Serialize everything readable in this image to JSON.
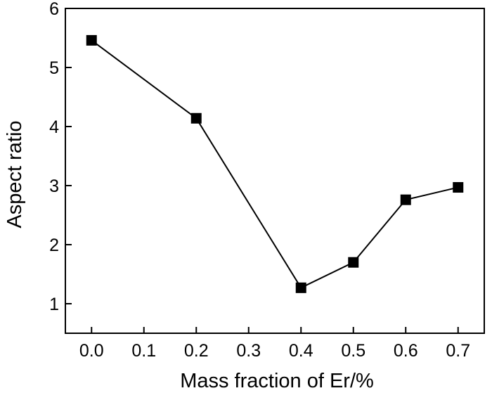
{
  "chart_data": {
    "type": "line",
    "xlabel": "Mass fraction of Er/%",
    "ylabel": "Aspect ratio",
    "xlim": [
      -0.05,
      0.75
    ],
    "ylim": [
      0.5,
      6
    ],
    "x_ticks": [
      "0.0",
      "0.1",
      "0.2",
      "0.3",
      "0.4",
      "0.5",
      "0.6",
      "0.7"
    ],
    "y_ticks": [
      "1",
      "2",
      "3",
      "4",
      "5",
      "6"
    ],
    "marker": "square",
    "grid": false,
    "series": [
      {
        "x": [
          0.0,
          0.2,
          0.4,
          0.5,
          0.6,
          0.7
        ],
        "values": [
          5.46,
          4.14,
          1.27,
          1.7,
          2.76,
          2.97
        ],
        "color": "#000000"
      }
    ]
  }
}
